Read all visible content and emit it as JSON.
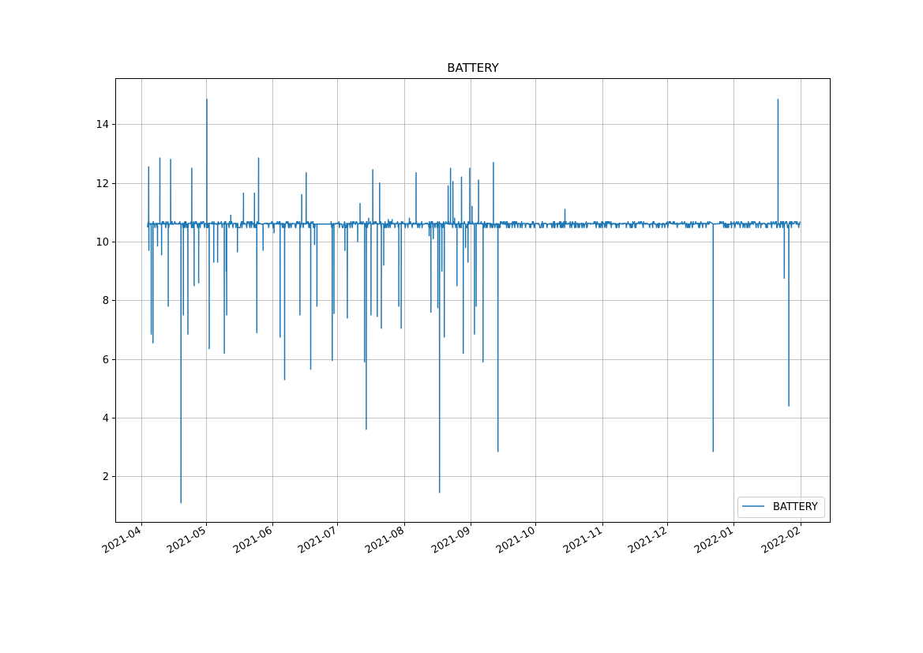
{
  "chart_data": {
    "type": "line",
    "title": "BATTERY",
    "xlabel": "",
    "ylabel": "",
    "grid": true,
    "legend": {
      "placement": "lower-right",
      "entries": [
        "BATTERY"
      ]
    },
    "series_color": "#1f77b4",
    "xlim": [
      "2021-03-20",
      "2022-02-15"
    ],
    "ylim": [
      0.42,
      15.57
    ],
    "x_ticks": [
      "2021-04",
      "2021-05",
      "2021-06",
      "2021-07",
      "2021-08",
      "2021-09",
      "2021-10",
      "2021-11",
      "2021-12",
      "2022-01",
      "2022-02"
    ],
    "y_ticks": [
      2,
      4,
      6,
      8,
      10,
      12,
      14
    ],
    "series": [
      {
        "name": "BATTERY",
        "start": "2021-04-04",
        "end": "2022-02-01",
        "baseline": 10.6,
        "gaps": [
          [
            "2021-06-21",
            "2021-06-28"
          ],
          [
            "2021-12-21",
            "2021-12-25"
          ]
        ],
        "spikes": [
          [
            "2021-04-04",
            12.55
          ],
          [
            "2021-04-04",
            9.7
          ],
          [
            "2021-04-05",
            6.85
          ],
          [
            "2021-04-06",
            6.55
          ],
          [
            "2021-04-08",
            9.85
          ],
          [
            "2021-04-09",
            12.85
          ],
          [
            "2021-04-10",
            9.55
          ],
          [
            "2021-04-13",
            7.8
          ],
          [
            "2021-04-14",
            12.8
          ],
          [
            "2021-04-19",
            1.1
          ],
          [
            "2021-04-20",
            7.5
          ],
          [
            "2021-04-22",
            6.85
          ],
          [
            "2021-04-24",
            12.5
          ],
          [
            "2021-04-25",
            8.5
          ],
          [
            "2021-04-27",
            8.6
          ],
          [
            "2021-05-01",
            14.85
          ],
          [
            "2021-05-02",
            6.35
          ],
          [
            "2021-05-04",
            9.3
          ],
          [
            "2021-05-06",
            9.3
          ],
          [
            "2021-05-09",
            6.2
          ],
          [
            "2021-05-10",
            7.5
          ],
          [
            "2021-05-10",
            9.0
          ],
          [
            "2021-05-12",
            10.9
          ],
          [
            "2021-05-15",
            9.65
          ],
          [
            "2021-05-18",
            11.65
          ],
          [
            "2021-05-23",
            11.65
          ],
          [
            "2021-05-24",
            6.9
          ],
          [
            "2021-05-25",
            12.85
          ],
          [
            "2021-05-27",
            9.7
          ],
          [
            "2021-06-01",
            10.3
          ],
          [
            "2021-06-04",
            6.75
          ],
          [
            "2021-06-06",
            5.3
          ],
          [
            "2021-06-13",
            7.5
          ],
          [
            "2021-06-14",
            11.6
          ],
          [
            "2021-06-16",
            12.35
          ],
          [
            "2021-06-18",
            5.65
          ],
          [
            "2021-06-20",
            9.9
          ],
          [
            "2021-06-21",
            7.8
          ],
          [
            "2021-06-28",
            5.95
          ],
          [
            "2021-06-29",
            7.55
          ],
          [
            "2021-07-04",
            9.7
          ],
          [
            "2021-07-05",
            7.4
          ],
          [
            "2021-07-10",
            10.0
          ],
          [
            "2021-07-11",
            11.3
          ],
          [
            "2021-07-13",
            5.9
          ],
          [
            "2021-07-14",
            3.6
          ],
          [
            "2021-07-15",
            10.8
          ],
          [
            "2021-07-16",
            7.5
          ],
          [
            "2021-07-17",
            12.45
          ],
          [
            "2021-07-19",
            7.45
          ],
          [
            "2021-07-20",
            12.0
          ],
          [
            "2021-07-21",
            7.05
          ],
          [
            "2021-07-22",
            9.2
          ],
          [
            "2021-07-24",
            10.75
          ],
          [
            "2021-07-26",
            10.75
          ],
          [
            "2021-07-29",
            7.8
          ],
          [
            "2021-07-30",
            7.05
          ],
          [
            "2021-08-03",
            10.8
          ],
          [
            "2021-08-06",
            12.35
          ],
          [
            "2021-08-12",
            10.2
          ],
          [
            "2021-08-13",
            7.6
          ],
          [
            "2021-08-14",
            10.1
          ],
          [
            "2021-08-16",
            7.75
          ],
          [
            "2021-08-17",
            1.45
          ],
          [
            "2021-08-18",
            9.0
          ],
          [
            "2021-08-19",
            6.75
          ],
          [
            "2021-08-21",
            11.9
          ],
          [
            "2021-08-22",
            12.5
          ],
          [
            "2021-08-23",
            12.05
          ],
          [
            "2021-08-24",
            10.8
          ],
          [
            "2021-08-25",
            8.5
          ],
          [
            "2021-08-27",
            12.2
          ],
          [
            "2021-08-28",
            6.2
          ],
          [
            "2021-08-29",
            9.8
          ],
          [
            "2021-08-30",
            9.3
          ],
          [
            "2021-08-31",
            12.5
          ],
          [
            "2021-09-01",
            11.2
          ],
          [
            "2021-09-02",
            6.85
          ],
          [
            "2021-09-03",
            7.8
          ],
          [
            "2021-09-04",
            12.1
          ],
          [
            "2021-09-06",
            5.9
          ],
          [
            "2021-09-11",
            12.7
          ],
          [
            "2021-09-13",
            2.85
          ],
          [
            "2021-10-14",
            11.1
          ],
          [
            "2021-12-22",
            2.85
          ],
          [
            "2022-01-21",
            14.85
          ],
          [
            "2022-01-22",
            10.5
          ],
          [
            "2022-01-24",
            8.75
          ],
          [
            "2022-01-26",
            4.4
          ]
        ]
      }
    ]
  }
}
